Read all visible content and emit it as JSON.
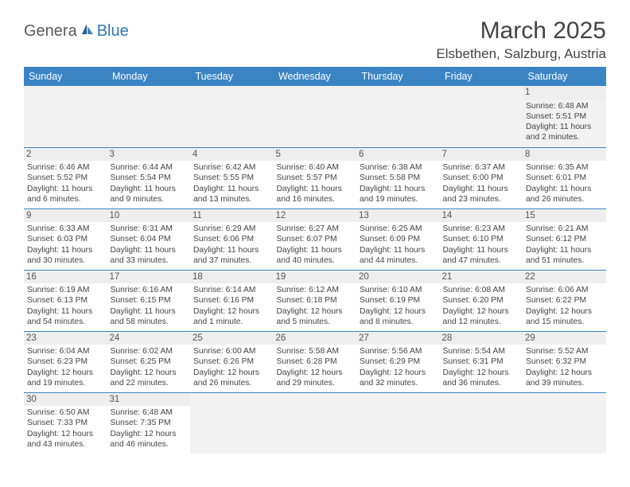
{
  "logo": {
    "part1": "Genera",
    "part2": "Blue"
  },
  "title": "March 2025",
  "location": "Elsbethen, Salzburg, Austria",
  "colors": {
    "header_bg": "#3b84c4",
    "header_text": "#ffffff",
    "daynum_bg": "#eeeeee",
    "border": "#3b84c4",
    "logo_blue": "#2f75b5",
    "logo_gray": "#5a5a5a"
  },
  "weekdays": [
    "Sunday",
    "Monday",
    "Tuesday",
    "Wednesday",
    "Thursday",
    "Friday",
    "Saturday"
  ],
  "weeks": [
    [
      null,
      null,
      null,
      null,
      null,
      null,
      {
        "n": "1",
        "sr": "Sunrise: 6:48 AM",
        "ss": "Sunset: 5:51 PM",
        "dl": "Daylight: 11 hours and 2 minutes."
      }
    ],
    [
      {
        "n": "2",
        "sr": "Sunrise: 6:46 AM",
        "ss": "Sunset: 5:52 PM",
        "dl": "Daylight: 11 hours and 6 minutes."
      },
      {
        "n": "3",
        "sr": "Sunrise: 6:44 AM",
        "ss": "Sunset: 5:54 PM",
        "dl": "Daylight: 11 hours and 9 minutes."
      },
      {
        "n": "4",
        "sr": "Sunrise: 6:42 AM",
        "ss": "Sunset: 5:55 PM",
        "dl": "Daylight: 11 hours and 13 minutes."
      },
      {
        "n": "5",
        "sr": "Sunrise: 6:40 AM",
        "ss": "Sunset: 5:57 PM",
        "dl": "Daylight: 11 hours and 16 minutes."
      },
      {
        "n": "6",
        "sr": "Sunrise: 6:38 AM",
        "ss": "Sunset: 5:58 PM",
        "dl": "Daylight: 11 hours and 19 minutes."
      },
      {
        "n": "7",
        "sr": "Sunrise: 6:37 AM",
        "ss": "Sunset: 6:00 PM",
        "dl": "Daylight: 11 hours and 23 minutes."
      },
      {
        "n": "8",
        "sr": "Sunrise: 6:35 AM",
        "ss": "Sunset: 6:01 PM",
        "dl": "Daylight: 11 hours and 26 minutes."
      }
    ],
    [
      {
        "n": "9",
        "sr": "Sunrise: 6:33 AM",
        "ss": "Sunset: 6:03 PM",
        "dl": "Daylight: 11 hours and 30 minutes."
      },
      {
        "n": "10",
        "sr": "Sunrise: 6:31 AM",
        "ss": "Sunset: 6:04 PM",
        "dl": "Daylight: 11 hours and 33 minutes."
      },
      {
        "n": "11",
        "sr": "Sunrise: 6:29 AM",
        "ss": "Sunset: 6:06 PM",
        "dl": "Daylight: 11 hours and 37 minutes."
      },
      {
        "n": "12",
        "sr": "Sunrise: 6:27 AM",
        "ss": "Sunset: 6:07 PM",
        "dl": "Daylight: 11 hours and 40 minutes."
      },
      {
        "n": "13",
        "sr": "Sunrise: 6:25 AM",
        "ss": "Sunset: 6:09 PM",
        "dl": "Daylight: 11 hours and 44 minutes."
      },
      {
        "n": "14",
        "sr": "Sunrise: 6:23 AM",
        "ss": "Sunset: 6:10 PM",
        "dl": "Daylight: 11 hours and 47 minutes."
      },
      {
        "n": "15",
        "sr": "Sunrise: 6:21 AM",
        "ss": "Sunset: 6:12 PM",
        "dl": "Daylight: 11 hours and 51 minutes."
      }
    ],
    [
      {
        "n": "16",
        "sr": "Sunrise: 6:19 AM",
        "ss": "Sunset: 6:13 PM",
        "dl": "Daylight: 11 hours and 54 minutes."
      },
      {
        "n": "17",
        "sr": "Sunrise: 6:16 AM",
        "ss": "Sunset: 6:15 PM",
        "dl": "Daylight: 11 hours and 58 minutes."
      },
      {
        "n": "18",
        "sr": "Sunrise: 6:14 AM",
        "ss": "Sunset: 6:16 PM",
        "dl": "Daylight: 12 hours and 1 minute."
      },
      {
        "n": "19",
        "sr": "Sunrise: 6:12 AM",
        "ss": "Sunset: 6:18 PM",
        "dl": "Daylight: 12 hours and 5 minutes."
      },
      {
        "n": "20",
        "sr": "Sunrise: 6:10 AM",
        "ss": "Sunset: 6:19 PM",
        "dl": "Daylight: 12 hours and 8 minutes."
      },
      {
        "n": "21",
        "sr": "Sunrise: 6:08 AM",
        "ss": "Sunset: 6:20 PM",
        "dl": "Daylight: 12 hours and 12 minutes."
      },
      {
        "n": "22",
        "sr": "Sunrise: 6:06 AM",
        "ss": "Sunset: 6:22 PM",
        "dl": "Daylight: 12 hours and 15 minutes."
      }
    ],
    [
      {
        "n": "23",
        "sr": "Sunrise: 6:04 AM",
        "ss": "Sunset: 6:23 PM",
        "dl": "Daylight: 12 hours and 19 minutes."
      },
      {
        "n": "24",
        "sr": "Sunrise: 6:02 AM",
        "ss": "Sunset: 6:25 PM",
        "dl": "Daylight: 12 hours and 22 minutes."
      },
      {
        "n": "25",
        "sr": "Sunrise: 6:00 AM",
        "ss": "Sunset: 6:26 PM",
        "dl": "Daylight: 12 hours and 26 minutes."
      },
      {
        "n": "26",
        "sr": "Sunrise: 5:58 AM",
        "ss": "Sunset: 6:28 PM",
        "dl": "Daylight: 12 hours and 29 minutes."
      },
      {
        "n": "27",
        "sr": "Sunrise: 5:56 AM",
        "ss": "Sunset: 6:29 PM",
        "dl": "Daylight: 12 hours and 32 minutes."
      },
      {
        "n": "28",
        "sr": "Sunrise: 5:54 AM",
        "ss": "Sunset: 6:31 PM",
        "dl": "Daylight: 12 hours and 36 minutes."
      },
      {
        "n": "29",
        "sr": "Sunrise: 5:52 AM",
        "ss": "Sunset: 6:32 PM",
        "dl": "Daylight: 12 hours and 39 minutes."
      }
    ],
    [
      {
        "n": "30",
        "sr": "Sunrise: 6:50 AM",
        "ss": "Sunset: 7:33 PM",
        "dl": "Daylight: 12 hours and 43 minutes."
      },
      {
        "n": "31",
        "sr": "Sunrise: 6:48 AM",
        "ss": "Sunset: 7:35 PM",
        "dl": "Daylight: 12 hours and 46 minutes."
      },
      null,
      null,
      null,
      null,
      null
    ]
  ]
}
